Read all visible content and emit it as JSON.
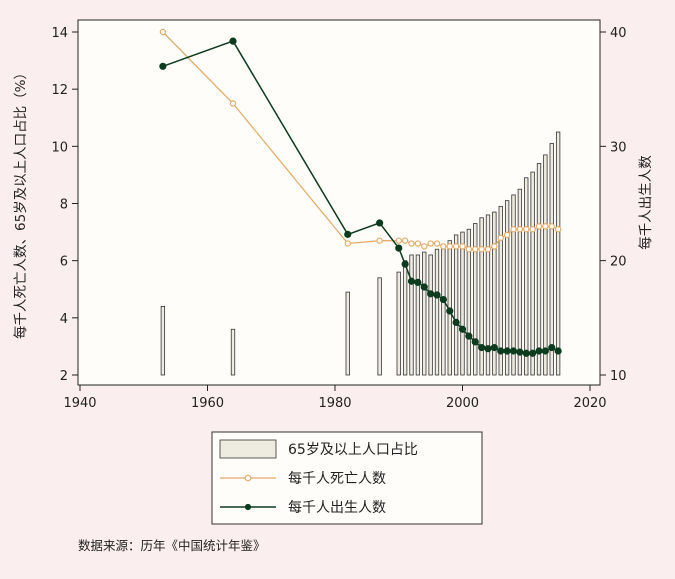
{
  "chart_data": {
    "type": "bar+line",
    "x_axis": {
      "range": [
        1940,
        2020
      ],
      "ticks": [
        1940,
        1960,
        1980,
        2000,
        2020
      ]
    },
    "y_left": {
      "label": "每千人死亡人数、65岁及以上人口占比（%）",
      "range": [
        2,
        14
      ],
      "ticks": [
        2,
        4,
        6,
        8,
        10,
        12,
        14
      ]
    },
    "y_right": {
      "label": "每千人出生人数",
      "range": [
        10,
        40
      ],
      "ticks": [
        10,
        20,
        30,
        40
      ]
    },
    "bars": {
      "name": "65岁及以上人口占比",
      "axis": "left",
      "color": "#eeebe0",
      "x": [
        1953,
        1964,
        1982,
        1987,
        1990,
        1991,
        1992,
        1993,
        1994,
        1995,
        1996,
        1997,
        1998,
        1999,
        2000,
        2001,
        2002,
        2003,
        2004,
        2005,
        2006,
        2007,
        2008,
        2009,
        2010,
        2011,
        2012,
        2013,
        2014,
        2015
      ],
      "values": [
        4.4,
        3.6,
        4.9,
        5.4,
        5.6,
        6.0,
        6.2,
        6.2,
        6.3,
        6.2,
        6.4,
        6.5,
        6.7,
        6.9,
        7.0,
        7.1,
        7.3,
        7.5,
        7.6,
        7.7,
        7.9,
        8.1,
        8.3,
        8.5,
        8.9,
        9.1,
        9.4,
        9.7,
        10.1,
        10.5
      ]
    },
    "series": [
      {
        "name": "每千人死亡人数",
        "axis": "left",
        "color": "#e5ac6b",
        "marker": "hollow-circle",
        "x": [
          1953,
          1964,
          1982,
          1987,
          1990,
          1991,
          1992,
          1993,
          1994,
          1995,
          1996,
          1997,
          1998,
          1999,
          2000,
          2001,
          2002,
          2003,
          2004,
          2005,
          2006,
          2007,
          2008,
          2009,
          2010,
          2011,
          2012,
          2013,
          2014,
          2015
        ],
        "values": [
          14.0,
          11.5,
          6.6,
          6.7,
          6.7,
          6.7,
          6.6,
          6.6,
          6.5,
          6.6,
          6.6,
          6.5,
          6.5,
          6.5,
          6.5,
          6.4,
          6.4,
          6.4,
          6.4,
          6.5,
          6.8,
          6.9,
          7.1,
          7.1,
          7.1,
          7.1,
          7.2,
          7.2,
          7.2,
          7.1
        ]
      },
      {
        "name": "每千人出生人数",
        "axis": "right",
        "color": "#0d3b1e",
        "marker": "filled-circle",
        "x": [
          1953,
          1964,
          1982,
          1987,
          1990,
          1991,
          1992,
          1993,
          1994,
          1995,
          1996,
          1997,
          1998,
          1999,
          2000,
          2001,
          2002,
          2003,
          2004,
          2005,
          2006,
          2007,
          2008,
          2009,
          2010,
          2011,
          2012,
          2013,
          2014,
          2015
        ],
        "values": [
          37.0,
          39.2,
          22.3,
          23.3,
          21.1,
          19.7,
          18.2,
          18.1,
          17.7,
          17.1,
          17.0,
          16.6,
          15.6,
          14.6,
          14.0,
          13.4,
          12.9,
          12.4,
          12.3,
          12.4,
          12.1,
          12.1,
          12.1,
          12.0,
          11.9,
          11.9,
          12.1,
          12.1,
          12.4,
          12.1
        ]
      }
    ],
    "legend": {
      "placement": "bottom-center",
      "items": [
        "65岁及以上人口占比",
        "每千人死亡人数",
        "每千人出生人数"
      ]
    },
    "grid": false
  },
  "source_note": "数据来源：历年《中国统计年鉴》"
}
